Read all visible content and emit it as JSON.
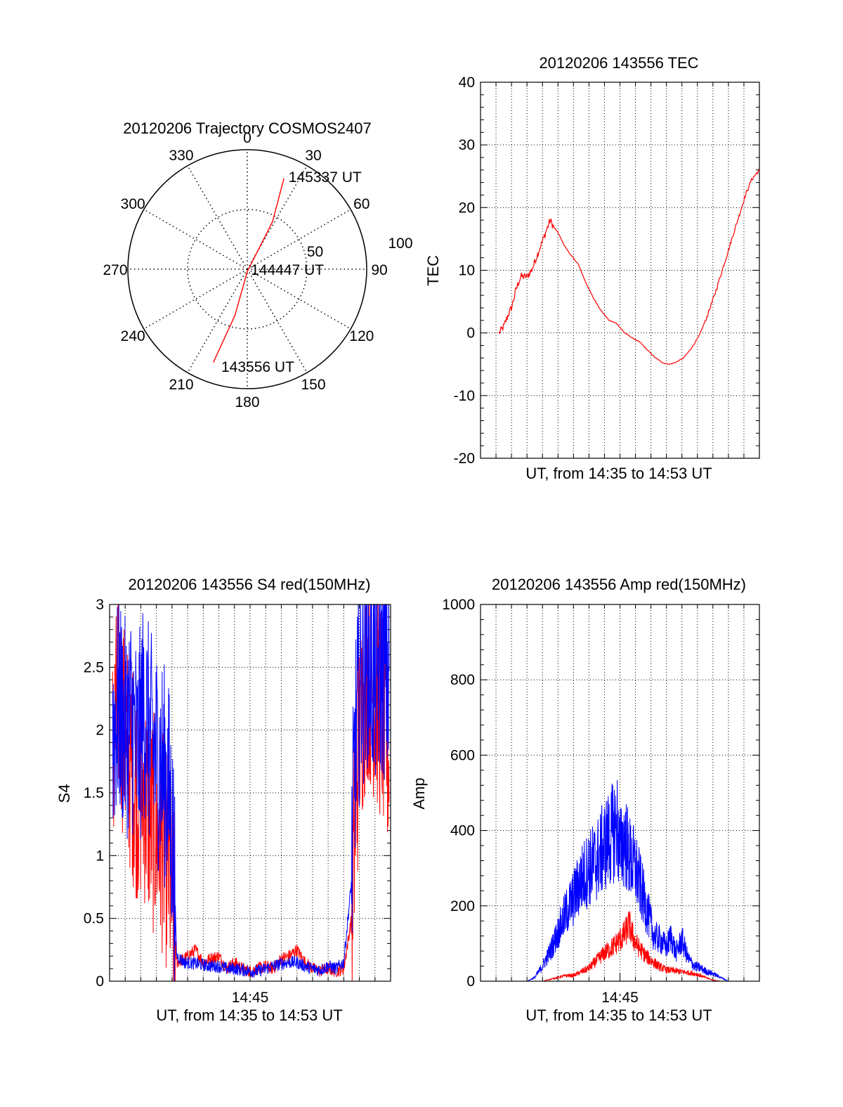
{
  "colors": {
    "red": "#ff0000",
    "blue": "#0000ff",
    "axis": "#000000",
    "grid": "#000000",
    "background": "#ffffff"
  },
  "chart_data": [
    {
      "id": "trajectory",
      "type": "scatter",
      "polar": true,
      "title": "20120206 Trajectory COSMOS2407",
      "azimuth_labels": [
        "0",
        "30",
        "60",
        "90",
        "120",
        "150",
        "180",
        "210",
        "240",
        "270",
        "300",
        "330"
      ],
      "radial_labels": [
        "50",
        "100"
      ],
      "elevation_ring": [
        50
      ],
      "grid": true,
      "series": [
        {
          "color": "red",
          "points": [
            {
              "az": 200,
              "r": 83
            },
            {
              "az": 195,
              "r": 40
            },
            {
              "az": 180,
              "r": 2
            },
            {
              "az": 28,
              "r": 45
            },
            {
              "az": 22,
              "r": 82
            }
          ]
        }
      ],
      "annotations": [
        {
          "text": "145337 UT",
          "az": 24,
          "r": 85
        },
        {
          "text": "144447 UT",
          "az": 90,
          "r": 3
        },
        {
          "text": "143556 UT",
          "az": 195,
          "r": 84
        }
      ]
    },
    {
      "id": "tec",
      "type": "line",
      "title": "20120206 143556 TEC",
      "xlabel": "UT, from 14:35 to 14:53 UT",
      "ylabel": "TEC",
      "xlim": [
        0,
        18
      ],
      "ylim": [
        -20,
        40
      ],
      "yticks": [
        -20,
        -10,
        0,
        10,
        20,
        30,
        40
      ],
      "grid": true,
      "series": [
        {
          "color": "red",
          "points": [
            [
              1.2,
              0
            ],
            [
              1.5,
              1
            ],
            [
              1.8,
              3
            ],
            [
              2.0,
              4
            ],
            [
              2.3,
              7
            ],
            [
              2.6,
              9
            ],
            [
              3.0,
              9
            ],
            [
              3.3,
              10
            ],
            [
              3.6,
              12
            ],
            [
              3.9,
              14
            ],
            [
              4.2,
              16
            ],
            [
              4.5,
              18
            ],
            [
              4.7,
              17
            ],
            [
              5.0,
              16
            ],
            [
              5.4,
              14
            ],
            [
              5.8,
              12.5
            ],
            [
              6.3,
              11
            ],
            [
              6.8,
              8
            ],
            [
              7.3,
              5.5
            ],
            [
              7.8,
              3.5
            ],
            [
              8.3,
              2
            ],
            [
              8.8,
              1.5
            ],
            [
              9.3,
              0
            ],
            [
              9.8,
              -0.8
            ],
            [
              10.3,
              -1.5
            ],
            [
              10.8,
              -2.8
            ],
            [
              11.3,
              -4
            ],
            [
              11.8,
              -4.8
            ],
            [
              12.2,
              -5
            ],
            [
              12.6,
              -4.7
            ],
            [
              13.1,
              -4
            ],
            [
              13.6,
              -2.5
            ],
            [
              14.1,
              -0.5
            ],
            [
              14.6,
              2.5
            ],
            [
              15.1,
              6
            ],
            [
              15.6,
              10
            ],
            [
              16.1,
              14
            ],
            [
              16.6,
              18
            ],
            [
              17.1,
              22
            ],
            [
              17.5,
              24.5
            ],
            [
              18.0,
              26
            ]
          ]
        }
      ]
    },
    {
      "id": "s4",
      "type": "line",
      "title": "20120206 143556 S4 red(150MHz)",
      "xlabel": "UT, from 14:35 to 14:53 UT",
      "ylabel": "S4",
      "xlim": [
        0,
        18
      ],
      "ylim": [
        0,
        3
      ],
      "yticks": [
        "0",
        "0.5",
        "1",
        "1.5",
        "2",
        "2.5",
        "3"
      ],
      "xticks": [
        {
          "value": 9,
          "label": "14:45"
        }
      ],
      "grid": true,
      "series": [
        {
          "color": "red",
          "points": [
            [
              0.2,
              1.8
            ],
            [
              0.6,
              2.3
            ],
            [
              1.0,
              1.9
            ],
            [
              1.4,
              1.7
            ],
            [
              1.8,
              1.5
            ],
            [
              2.2,
              1.5
            ],
            [
              2.6,
              1.3
            ],
            [
              3.0,
              1.2
            ],
            [
              3.4,
              1.1
            ],
            [
              3.8,
              0.9
            ],
            [
              4.1,
              0.5
            ],
            [
              4.3,
              0.15
            ],
            [
              4.8,
              0.18
            ],
            [
              5.5,
              0.25
            ],
            [
              6.0,
              0.15
            ],
            [
              6.5,
              0.18
            ],
            [
              7.0,
              0.2
            ],
            [
              7.5,
              0.1
            ],
            [
              8.0,
              0.15
            ],
            [
              8.5,
              0.1
            ],
            [
              9.0,
              0.08
            ],
            [
              9.5,
              0.1
            ],
            [
              10.0,
              0.12
            ],
            [
              10.5,
              0.1
            ],
            [
              11.0,
              0.18
            ],
            [
              11.5,
              0.2
            ],
            [
              12.0,
              0.25
            ],
            [
              12.5,
              0.15
            ],
            [
              13.0,
              0.1
            ],
            [
              13.5,
              0.08
            ],
            [
              14.0,
              0.1
            ],
            [
              14.5,
              0.08
            ],
            [
              15.0,
              0.1
            ],
            [
              15.5,
              0.5
            ],
            [
              15.7,
              1.2
            ],
            [
              16.0,
              2.0
            ],
            [
              16.5,
              2.5
            ],
            [
              17.0,
              2.3
            ],
            [
              17.5,
              2.1
            ],
            [
              17.9,
              1.8
            ]
          ]
        },
        {
          "color": "blue",
          "points": [
            [
              0.2,
              2.0
            ],
            [
              0.6,
              2.2
            ],
            [
              1.0,
              2.0
            ],
            [
              1.4,
              2.1
            ],
            [
              1.8,
              1.8
            ],
            [
              2.2,
              2.2
            ],
            [
              2.6,
              1.9
            ],
            [
              3.0,
              1.8
            ],
            [
              3.4,
              1.7
            ],
            [
              3.8,
              1.5
            ],
            [
              4.1,
              1.0
            ],
            [
              4.3,
              0.2
            ],
            [
              4.8,
              0.15
            ],
            [
              5.5,
              0.14
            ],
            [
              6.0,
              0.13
            ],
            [
              6.5,
              0.12
            ],
            [
              7.0,
              0.12
            ],
            [
              7.5,
              0.1
            ],
            [
              8.0,
              0.1
            ],
            [
              8.5,
              0.09
            ],
            [
              9.0,
              0.08
            ],
            [
              9.5,
              0.08
            ],
            [
              10.0,
              0.1
            ],
            [
              10.5,
              0.12
            ],
            [
              11.0,
              0.14
            ],
            [
              11.5,
              0.15
            ],
            [
              12.0,
              0.15
            ],
            [
              12.5,
              0.12
            ],
            [
              13.0,
              0.1
            ],
            [
              13.5,
              0.09
            ],
            [
              14.0,
              0.12
            ],
            [
              14.5,
              0.1
            ],
            [
              15.0,
              0.15
            ],
            [
              15.5,
              0.8
            ],
            [
              15.7,
              1.8
            ],
            [
              16.0,
              2.3
            ],
            [
              16.5,
              2.6
            ],
            [
              17.0,
              2.4
            ],
            [
              17.5,
              2.5
            ],
            [
              17.9,
              2.4
            ]
          ]
        }
      ]
    },
    {
      "id": "amp",
      "type": "line",
      "title": "20120206 143556 Amp red(150MHz)",
      "xlabel": "UT, from 14:35 to 14:53 UT",
      "ylabel": "Amp",
      "xlim": [
        0,
        18
      ],
      "ylim": [
        0,
        1000
      ],
      "yticks": [
        0,
        200,
        400,
        600,
        800,
        1000
      ],
      "xticks": [
        {
          "value": 9,
          "label": "14:45"
        }
      ],
      "grid": true,
      "series": [
        {
          "color": "red",
          "points": [
            [
              1.2,
              0
            ],
            [
              4.0,
              0
            ],
            [
              4.5,
              5
            ],
            [
              5.0,
              10
            ],
            [
              5.5,
              15
            ],
            [
              6.0,
              15
            ],
            [
              6.5,
              25
            ],
            [
              7.0,
              35
            ],
            [
              7.5,
              55
            ],
            [
              8.0,
              75
            ],
            [
              8.5,
              90
            ],
            [
              9.0,
              110
            ],
            [
              9.3,
              125
            ],
            [
              9.6,
              150
            ],
            [
              9.9,
              110
            ],
            [
              10.2,
              90
            ],
            [
              10.6,
              70
            ],
            [
              11.0,
              55
            ],
            [
              11.5,
              40
            ],
            [
              12.0,
              30
            ],
            [
              12.5,
              28
            ],
            [
              13.0,
              25
            ],
            [
              13.5,
              22
            ],
            [
              14.0,
              18
            ],
            [
              14.5,
              10
            ],
            [
              15.0,
              3
            ],
            [
              15.5,
              0
            ],
            [
              18.0,
              0
            ]
          ]
        },
        {
          "color": "blue",
          "points": [
            [
              1.2,
              0
            ],
            [
              3.0,
              0
            ],
            [
              3.5,
              10
            ],
            [
              4.0,
              40
            ],
            [
              4.5,
              80
            ],
            [
              5.0,
              130
            ],
            [
              5.5,
              180
            ],
            [
              6.0,
              220
            ],
            [
              6.5,
              270
            ],
            [
              7.0,
              300
            ],
            [
              7.5,
              320
            ],
            [
              8.0,
              360
            ],
            [
              8.5,
              390
            ],
            [
              8.8,
              420
            ],
            [
              9.0,
              340
            ],
            [
              9.3,
              380
            ],
            [
              9.6,
              330
            ],
            [
              10.0,
              300
            ],
            [
              10.4,
              240
            ],
            [
              10.8,
              180
            ],
            [
              11.2,
              120
            ],
            [
              11.6,
              110
            ],
            [
              12.0,
              90
            ],
            [
              12.3,
              120
            ],
            [
              12.6,
              75
            ],
            [
              13.0,
              110
            ],
            [
              13.4,
              60
            ],
            [
              13.8,
              40
            ],
            [
              14.2,
              35
            ],
            [
              14.6,
              25
            ],
            [
              15.0,
              20
            ],
            [
              15.5,
              10
            ],
            [
              16.0,
              0
            ],
            [
              18.0,
              0
            ]
          ]
        }
      ]
    }
  ]
}
